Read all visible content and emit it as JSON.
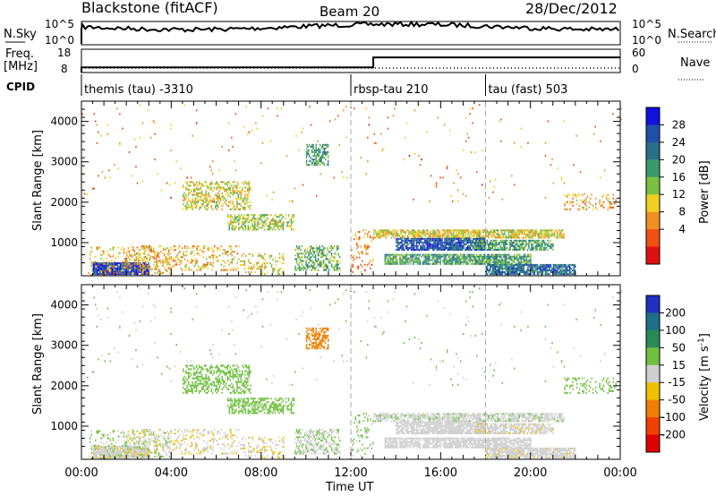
{
  "header": {
    "station": "Blackstone (fitACF)",
    "beam": "Beam 20",
    "date": "28/Dec/2012"
  },
  "summary_panels": {
    "nsky_label": "N.Sky",
    "nsky_ticks": [
      "10^5",
      "10^0"
    ],
    "nsearch_label": "N.Search",
    "nsearch_ticks": [
      "10^5",
      "10^0"
    ],
    "freq_label_line1": "Freq.",
    "freq_label_line2": "[MHz]",
    "freq_ticks": [
      "18",
      "8"
    ],
    "nave_label": "Nave",
    "nave_ticks": [
      "60",
      "0"
    ],
    "cpid_label": "CPID"
  },
  "cpid_segments": [
    {
      "label": "themis (tau) -3310",
      "start_hour": 0.0
    },
    {
      "label": "rbsp-tau 210",
      "start_hour": 12.0
    },
    {
      "label": "tau (fast) 503",
      "start_hour": 18.0
    }
  ],
  "axes": {
    "ylabel": "Slant Range [km]",
    "xlabel": "Time UT",
    "x_ticks": [
      "00:00",
      "04:00",
      "08:00",
      "12:00",
      "16:00",
      "20:00",
      "00:00"
    ],
    "y_ticks": [
      "1000",
      "2000",
      "3000",
      "4000"
    ]
  },
  "power_colorbar": {
    "label": "Power [dB]",
    "ticks": [
      "28",
      "24",
      "20",
      "16",
      "12",
      "8",
      "4"
    ],
    "colors": [
      "#1010e0",
      "#1f4fa8",
      "#2a6f8a",
      "#3c9a6a",
      "#7ac040",
      "#f0d020",
      "#f09020",
      "#f05010",
      "#e01010"
    ]
  },
  "velocity_colorbar": {
    "label": "Velocity [m s",
    "label_sup": "-1",
    "label_end": "]",
    "ticks": [
      "200",
      "100",
      "50",
      "15",
      "-15",
      "-50",
      "-100",
      "-200"
    ],
    "colors": [
      "#2030c0",
      "#1f6f88",
      "#2a8a55",
      "#70c040",
      "#cfcfcf",
      "#f0c000",
      "#f08000",
      "#f04000",
      "#e00000"
    ]
  },
  "chart_data": {
    "type": "heatmap",
    "title": "Blackstone (fitACF)",
    "xlabel": "Time UT",
    "ylabel": "Slant Range [km]",
    "x_range_hours": [
      0,
      24
    ],
    "y_range_km": [
      180,
      4500
    ],
    "freq_mhz": [
      {
        "start_hour": 0,
        "end_hour": 13,
        "value": 10.2
      },
      {
        "start_hour": 13,
        "end_hour": 24,
        "value": 14.5
      }
    ],
    "nave": [
      {
        "start_hour": 0,
        "end_hour": 24,
        "value": 1
      }
    ],
    "scatter_regions": [
      {
        "t0": 0.0,
        "t1": 24.0,
        "r0": 2000,
        "r1": 4400,
        "density": 0.01,
        "power": 8,
        "velocity": 15
      },
      {
        "t0": 0.5,
        "t1": 3.0,
        "r0": 200,
        "r1": 500,
        "density": 0.95,
        "power": 26,
        "velocity": -5
      },
      {
        "t0": 0.3,
        "t1": 4.0,
        "r0": 180,
        "r1": 900,
        "density": 0.22,
        "power": 10,
        "velocity": 20
      },
      {
        "t0": 2.0,
        "t1": 7.0,
        "r0": 300,
        "r1": 900,
        "density": 0.25,
        "power": 10,
        "velocity": -10
      },
      {
        "t0": 4.5,
        "t1": 7.5,
        "r0": 1800,
        "r1": 2500,
        "density": 0.45,
        "power": 12,
        "velocity": 35
      },
      {
        "t0": 6.5,
        "t1": 9.5,
        "r0": 1300,
        "r1": 1700,
        "density": 0.55,
        "power": 14,
        "velocity": 30
      },
      {
        "t0": 7.0,
        "t1": 9.0,
        "r0": 200,
        "r1": 700,
        "density": 0.25,
        "power": 12,
        "velocity": -10
      },
      {
        "t0": 9.5,
        "t1": 11.5,
        "r0": 300,
        "r1": 900,
        "density": 0.5,
        "power": 16,
        "velocity": 10
      },
      {
        "t0": 10.0,
        "t1": 11.0,
        "r0": 2900,
        "r1": 3400,
        "density": 0.6,
        "power": 18,
        "velocity": -80
      },
      {
        "t0": 12.0,
        "t1": 13.0,
        "r0": 250,
        "r1": 1300,
        "density": 0.15,
        "power": 8,
        "velocity": 20
      },
      {
        "t0": 13.0,
        "t1": 21.5,
        "r0": 1100,
        "r1": 1300,
        "density": 0.7,
        "power": 12,
        "velocity": 5
      },
      {
        "t0": 14.0,
        "t1": 18.0,
        "r0": 800,
        "r1": 1100,
        "density": 0.85,
        "power": 24,
        "velocity": 0
      },
      {
        "t0": 17.5,
        "t1": 21.0,
        "r0": 800,
        "r1": 1050,
        "density": 0.7,
        "power": 18,
        "velocity": -5
      },
      {
        "t0": 13.5,
        "t1": 20.0,
        "r0": 450,
        "r1": 700,
        "density": 0.8,
        "power": 18,
        "velocity": 0
      },
      {
        "t0": 18.0,
        "t1": 22.0,
        "r0": 200,
        "r1": 450,
        "density": 0.85,
        "power": 22,
        "velocity": -3
      },
      {
        "t0": 21.5,
        "t1": 23.8,
        "r0": 1800,
        "r1": 2200,
        "density": 0.25,
        "power": 10,
        "velocity": 30
      }
    ]
  }
}
